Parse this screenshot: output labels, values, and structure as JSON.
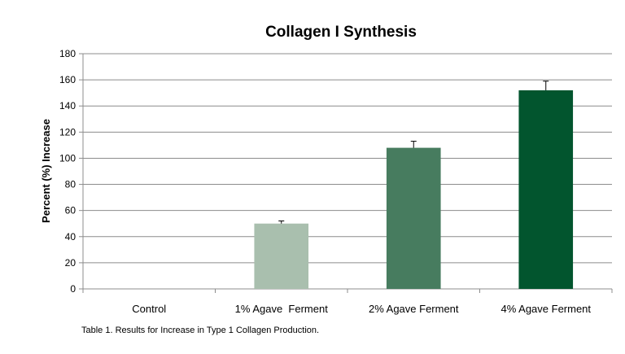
{
  "chart_data": {
    "type": "bar",
    "title": "Collagen I Synthesis",
    "xlabel": "",
    "ylabel": "Percent (%) Increase",
    "categories": [
      "Control",
      "1% Agave  Ferment",
      "2% Agave Ferment",
      "4% Agave Ferment"
    ],
    "values": [
      0,
      50,
      108,
      152
    ],
    "error_plus": [
      0,
      2,
      5,
      7
    ],
    "colors": [
      "#a9bfae",
      "#a9bfae",
      "#477c5f",
      "#02552e"
    ],
    "ylim": [
      0,
      180
    ],
    "yticks": [
      0,
      20,
      40,
      60,
      80,
      100,
      120,
      140,
      160,
      180
    ],
    "grid": true,
    "legend": "none"
  },
  "caption": "Table 1. Results for Increase in Type 1 Collagen Production."
}
